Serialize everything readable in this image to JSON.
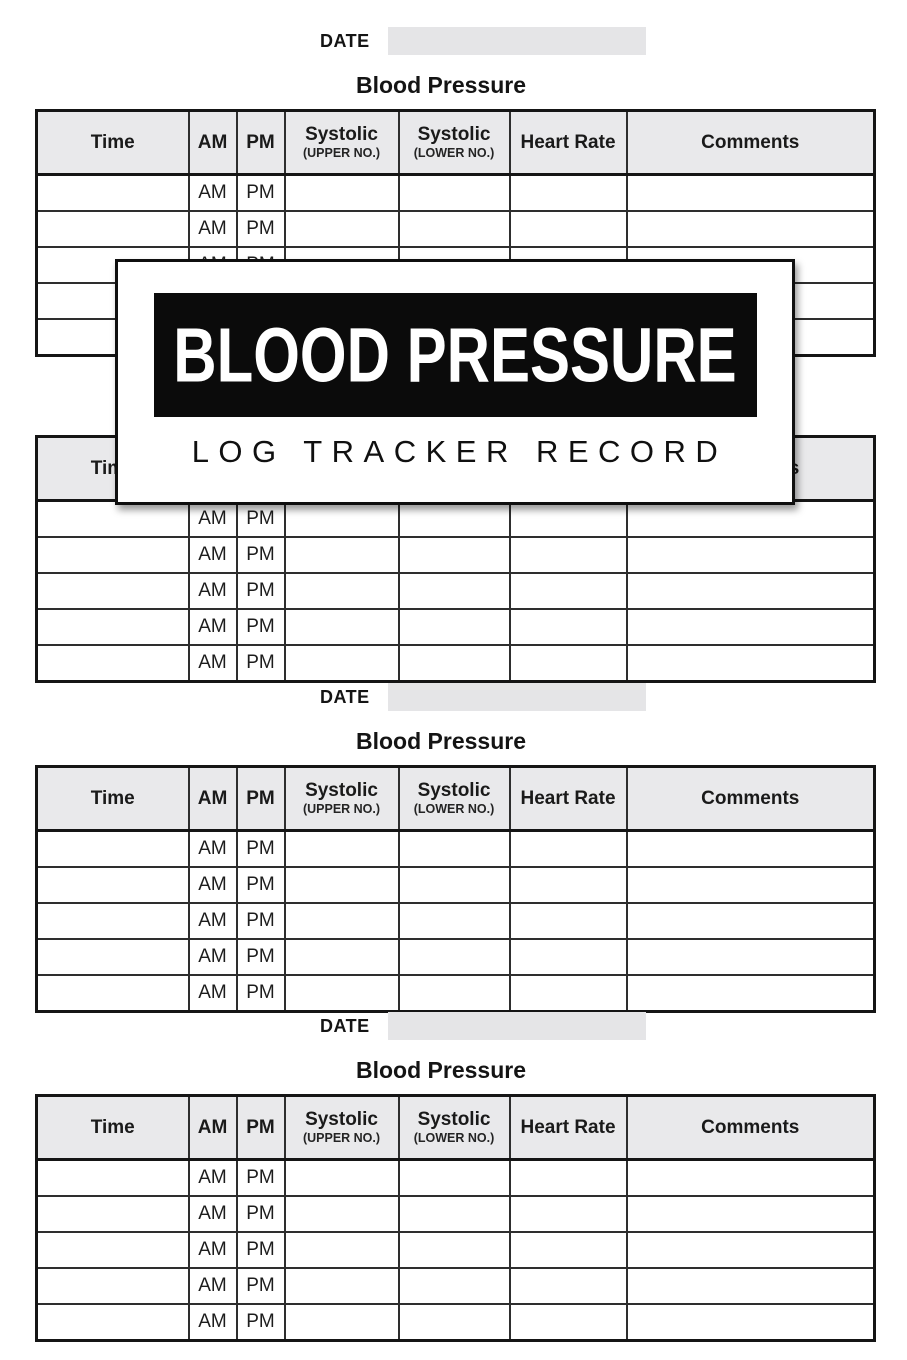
{
  "labels": {
    "date": "DATE",
    "heading": "Blood Pressure"
  },
  "overlay": {
    "title": "BLOOD PRESSURE",
    "subtitle": "LOG TRACKER RECORD"
  },
  "table": {
    "columns": [
      {
        "label": "Time",
        "sub": ""
      },
      {
        "label": "AM",
        "sub": ""
      },
      {
        "label": "PM",
        "sub": ""
      },
      {
        "label": "Systolic",
        "sub": "(UPPER NO.)"
      },
      {
        "label": "Systolic",
        "sub": "(LOWER NO.)"
      },
      {
        "label": "Heart Rate",
        "sub": ""
      },
      {
        "label": "Comments",
        "sub": ""
      }
    ],
    "row_am": "AM",
    "row_pm": "PM",
    "rows_per_table": 5,
    "table_count": 4
  },
  "colors": {
    "header_fill": "#e9e9eb",
    "date_box_fill": "#e5e5e7",
    "table_border": "#151515",
    "overlay_border": "#0f0f0f",
    "overlay_banner_bg": "#0b0b0b",
    "overlay_title_text": "#ffffff",
    "page_bg": "#ffffff"
  }
}
